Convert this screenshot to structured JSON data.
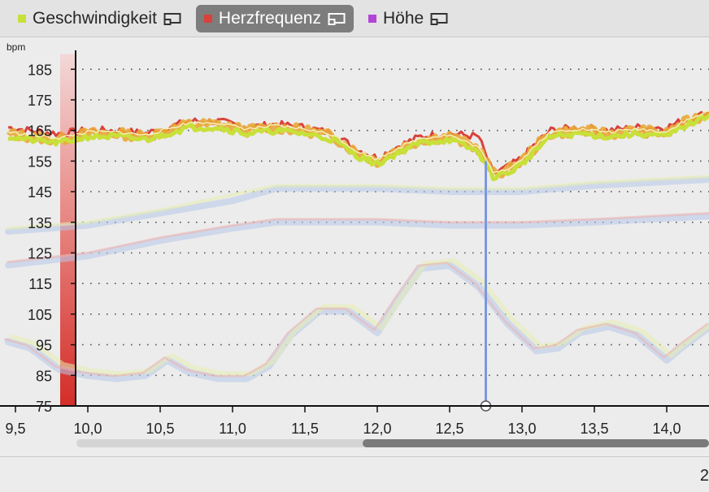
{
  "tabs": [
    {
      "label": "Geschwindigkeit",
      "color": "#c8e03a",
      "active": false,
      "icon": "popout-icon"
    },
    {
      "label": "Herzfrequenz",
      "color": "#d9413b",
      "active": true,
      "icon": "popout-icon"
    },
    {
      "label": "Höhe",
      "color": "#b444d6",
      "active": false,
      "icon": "popout-icon"
    }
  ],
  "footer": {
    "value": "2"
  },
  "chart_data": {
    "type": "line",
    "ylabel": "bpm",
    "xlim": [
      9.45,
      14.3
    ],
    "ylim": [
      75,
      190
    ],
    "yticks": [
      75,
      85,
      95,
      105,
      115,
      125,
      135,
      145,
      155,
      165,
      175,
      185
    ],
    "xticks": [
      9.5,
      10.0,
      10.5,
      11.0,
      11.5,
      12.0,
      12.5,
      13.0,
      13.5,
      14.0
    ],
    "xtick_labels": [
      "9,5",
      "10,0",
      "10,5",
      "11,0",
      "11,5",
      "12,0",
      "12,5",
      "13,0",
      "13,5",
      "14,0"
    ],
    "ytick_labels": [
      "75",
      "85",
      "95",
      "105",
      "115",
      "125",
      "135",
      "145",
      "155",
      "165",
      "175",
      "185"
    ],
    "grid": "dotted-horizontal",
    "cursor_x": 12.75,
    "series": [
      {
        "name": "Herzfrequenz",
        "color": "#d9413b",
        "x": [
          9.45,
          9.6,
          9.8,
          10.0,
          10.2,
          10.4,
          10.55,
          10.7,
          10.9,
          11.1,
          11.3,
          11.5,
          11.7,
          11.85,
          12.0,
          12.15,
          12.3,
          12.5,
          12.7,
          12.8,
          12.9,
          13.0,
          13.1,
          13.2,
          13.4,
          13.6,
          13.8,
          14.0,
          14.1,
          14.3
        ],
        "y": [
          166,
          165,
          164,
          165,
          165,
          164,
          166,
          168,
          168,
          166,
          167,
          166,
          164,
          159,
          156,
          160,
          163,
          164,
          163,
          151,
          153,
          156,
          161,
          165,
          166,
          165,
          166,
          166,
          168,
          171
        ]
      },
      {
        "name": "Geschwindigkeit",
        "color": "#c8e03a",
        "x": [
          9.45,
          9.6,
          9.8,
          10.0,
          10.2,
          10.4,
          10.55,
          10.7,
          10.9,
          11.1,
          11.3,
          11.5,
          11.7,
          11.85,
          12.0,
          12.15,
          12.3,
          12.5,
          12.7,
          12.8,
          12.9,
          13.0,
          13.1,
          13.2,
          13.4,
          13.6,
          13.8,
          14.0,
          14.1,
          14.3
        ],
        "y": [
          163,
          162,
          161,
          163,
          163,
          162,
          164,
          166,
          166,
          164,
          165,
          164,
          162,
          157,
          154,
          158,
          161,
          162,
          158,
          150,
          151,
          154,
          159,
          163,
          164,
          163,
          164,
          163,
          166,
          170
        ]
      },
      {
        "name": "Höhe",
        "color": "#b444d6",
        "x": [],
        "y": []
      }
    ]
  }
}
